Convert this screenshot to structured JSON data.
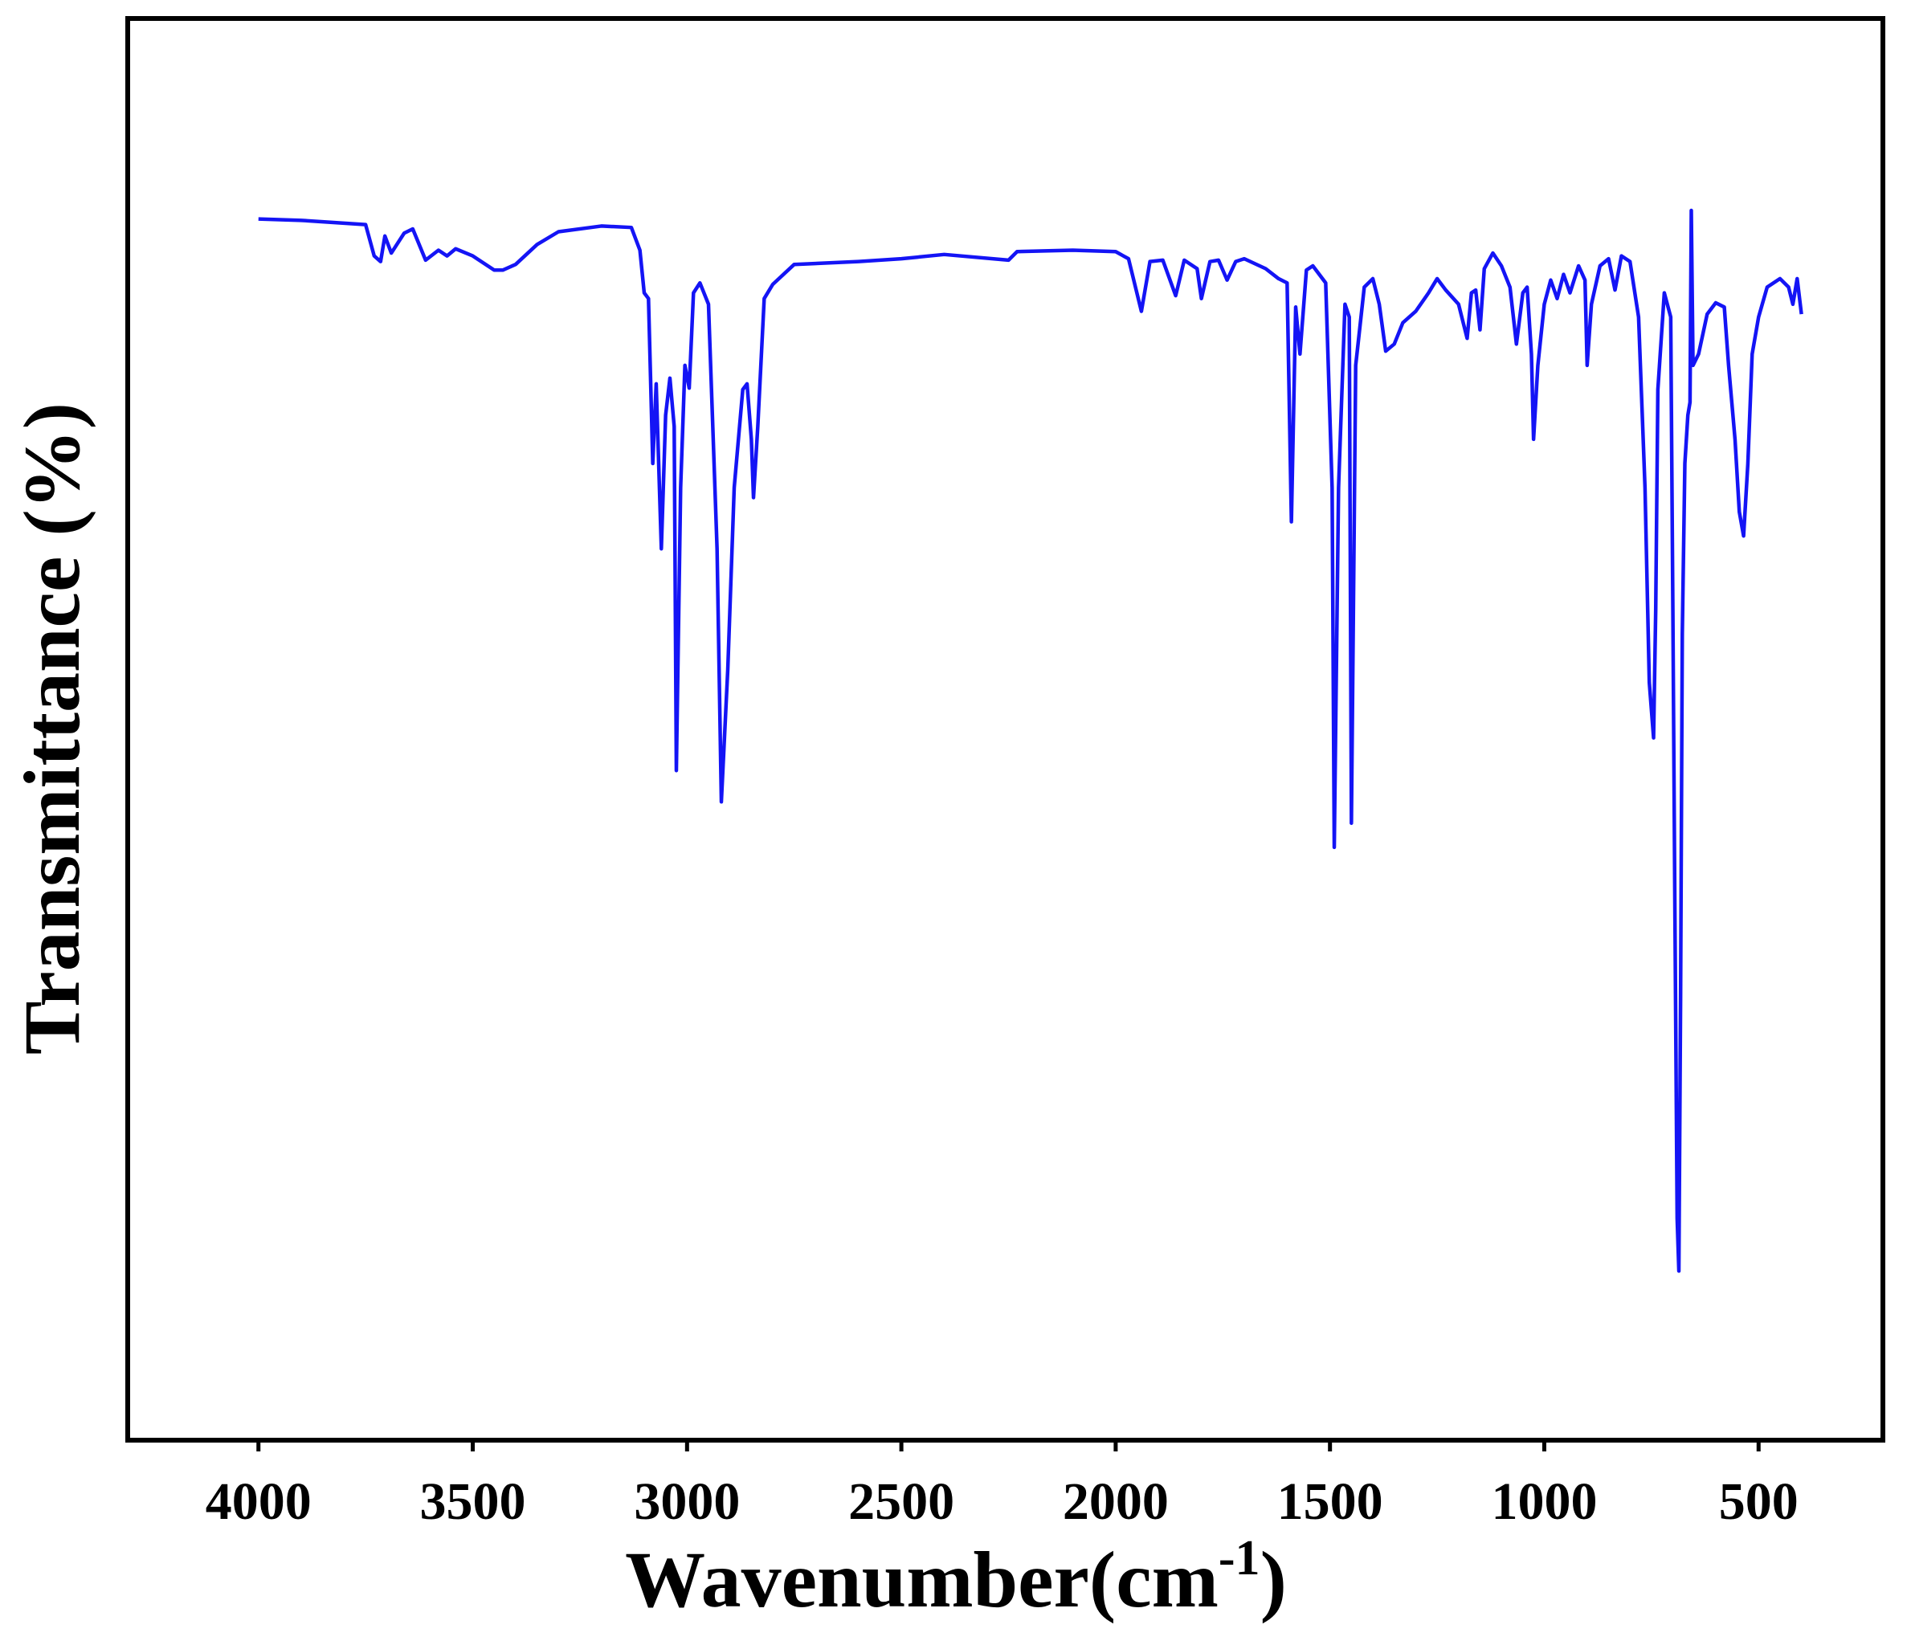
{
  "chart_data": {
    "type": "line",
    "x_label": "Wavenumber(cm",
    "x_label_superscript": "-1",
    "x_label_end": ")",
    "y_label": "Transmittance (%)",
    "xlim": [
      4305,
      210
    ],
    "xticks": [
      4000,
      3500,
      3000,
      2500,
      2000,
      1500,
      1000,
      500
    ],
    "ylim": [
      0,
      100
    ],
    "series": [
      {
        "color": "#1414f5",
        "x": [
          4000,
          3900,
          3800,
          3750,
          3730,
          3715,
          3705,
          3690,
          3660,
          3640,
          3610,
          3580,
          3560,
          3540,
          3500,
          3450,
          3430,
          3400,
          3350,
          3300,
          3200,
          3130,
          3110,
          3100,
          3090,
          3080,
          3072,
          3060,
          3050,
          3040,
          3030,
          3025,
          3015,
          3005,
          2995,
          2985,
          2970,
          2950,
          2930,
          2920,
          2905,
          2890,
          2870,
          2860,
          2850,
          2845,
          2835,
          2820,
          2800,
          2750,
          2600,
          2500,
          2400,
          2250,
          2230,
          2100,
          2000,
          1970,
          1940,
          1920,
          1890,
          1860,
          1840,
          1810,
          1800,
          1780,
          1760,
          1740,
          1720,
          1700,
          1650,
          1620,
          1600,
          1590,
          1580,
          1570,
          1555,
          1540,
          1510,
          1495,
          1490,
          1480,
          1465,
          1455,
          1450,
          1440,
          1420,
          1400,
          1385,
          1370,
          1350,
          1330,
          1300,
          1270,
          1250,
          1230,
          1200,
          1180,
          1170,
          1160,
          1150,
          1140,
          1120,
          1100,
          1080,
          1065,
          1050,
          1040,
          1030,
          1025,
          1015,
          1000,
          985,
          970,
          955,
          940,
          920,
          905,
          900,
          890,
          870,
          850,
          835,
          820,
          800,
          780,
          765,
          755,
          745,
          740,
          735,
          720,
          705,
          700,
          695,
          690,
          686,
          682,
          678,
          672,
          665,
          660,
          657,
          653,
          640,
          620,
          600,
          580,
          570,
          555,
          545,
          535,
          525,
          515,
          500,
          480,
          450,
          430,
          420,
          410,
          400
        ],
        "values": [
          85.9,
          85.8,
          85.6,
          85.5,
          83.3,
          82.9,
          84.7,
          83.5,
          84.9,
          85.2,
          83.0,
          83.7,
          83.3,
          83.8,
          83.3,
          82.3,
          82.3,
          82.7,
          84.1,
          85.0,
          85.4,
          85.3,
          83.7,
          80.7,
          80.3,
          68.7,
          74.3,
          62.7,
          72.1,
          74.7,
          71.3,
          47.1,
          67.0,
          75.6,
          74.0,
          80.7,
          81.4,
          79.9,
          62.7,
          44.9,
          54.2,
          67.0,
          73.9,
          74.3,
          70.4,
          66.3,
          71.3,
          80.3,
          81.3,
          82.7,
          82.9,
          83.1,
          83.4,
          83.0,
          83.6,
          83.7,
          83.6,
          83.1,
          79.4,
          82.9,
          83.0,
          80.5,
          83.0,
          82.4,
          80.3,
          82.9,
          83.0,
          81.6,
          82.9,
          83.1,
          82.4,
          81.7,
          81.4,
          64.6,
          79.7,
          76.4,
          82.3,
          82.6,
          81.4,
          67.0,
          41.7,
          67.0,
          79.9,
          79.0,
          43.4,
          75.6,
          81.1,
          81.7,
          79.9,
          76.6,
          77.1,
          78.6,
          79.4,
          80.7,
          81.7,
          80.9,
          79.9,
          77.5,
          80.7,
          80.9,
          78.1,
          82.4,
          83.5,
          82.6,
          81.1,
          77.1,
          80.7,
          81.1,
          76.4,
          70.4,
          75.6,
          79.9,
          81.6,
          80.3,
          82.0,
          80.7,
          82.6,
          81.6,
          75.6,
          79.9,
          82.6,
          83.1,
          80.9,
          83.3,
          82.9,
          79.0,
          67.0,
          53.3,
          49.4,
          58.4,
          73.9,
          80.7,
          79.0,
          58.4,
          36.2,
          15.6,
          11.9,
          31.0,
          56.7,
          68.7,
          72.1,
          73.0,
          86.5,
          75.6,
          76.4,
          79.2,
          80.0,
          79.7,
          75.6,
          70.4,
          65.3,
          63.6,
          68.7,
          76.4,
          79.0,
          81.1,
          81.7,
          81.1,
          79.9,
          81.7,
          79.2
        ]
      }
    ]
  }
}
